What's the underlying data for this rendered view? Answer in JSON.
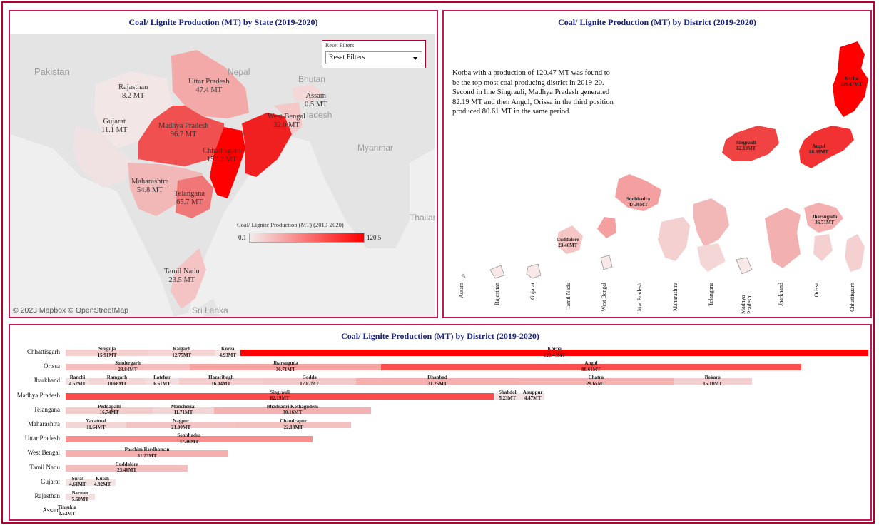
{
  "state_panel": {
    "title": "Coal/ Lignite Production (MT) by State (2019-2020)",
    "filter": {
      "title": "Reset Filters",
      "selected": "Reset Filters"
    },
    "legend": {
      "title": "Coal/ Lignite Production (MT) (2019-2020)",
      "min": "0.1",
      "max": "120.5",
      "color_low": "#f2ecec",
      "color_high": "#ff0000"
    },
    "geo_labels": [
      "Pakistan",
      "Nepal",
      "Bhutan",
      "Myanmar",
      "Thailand",
      "Sri Lanka",
      "ladesh"
    ],
    "attribution": "© 2023 Mapbox  © OpenStreetMap",
    "states": [
      {
        "name": "Rajasthan",
        "value": "8.2 MT"
      },
      {
        "name": "Uttar Pradesh",
        "value": "47.4 MT"
      },
      {
        "name": "Assam",
        "value": "0.5 MT"
      },
      {
        "name": "Gujarat",
        "value": "11.1 MT"
      },
      {
        "name": "Madhya Pradesh",
        "value": "96.7 MT"
      },
      {
        "name": "West Bengal",
        "value": "32.0 MT"
      },
      {
        "name": "Chhattisgarh",
        "value": "157.2 MT"
      },
      {
        "name": "Maharashtra",
        "value": "54.8 MT"
      },
      {
        "name": "Telangana",
        "value": "65.7 MT"
      },
      {
        "name": "Tamil Nadu",
        "value": "23.5 MT"
      }
    ]
  },
  "district_map_panel": {
    "title": "Coal/ Lignite Production (MT) by District (2019-2020)",
    "story": "Korba with a production of 120.47 MT was found to be the top most coal producing district in 2019-20.  Second in line Singrauli, Madhya Pradesh generated 82.19 MT and then Angul, Orissa in the third position produced 80.61 MT in the same period.",
    "districts": [
      {
        "name": "Korba",
        "value": "120.47MT"
      },
      {
        "name": "Singrauli",
        "value": "82.19MT"
      },
      {
        "name": "Angul",
        "value": "80.61MT"
      },
      {
        "name": "Sonbhadra",
        "value": "47.36MT"
      },
      {
        "name": "Jharsuguda",
        "value": "36.71MT"
      },
      {
        "name": "Cuddalore",
        "value": "23.46MT"
      }
    ],
    "x_labels": [
      "Assam",
      "Rajasthan",
      "Gujarat",
      "Tamil Nadu",
      "West Bengal",
      "Uttar Pradesh",
      "Maharashtra",
      "Telangana",
      "Madhya Pradesh",
      "Jharkhand",
      "Orissa",
      "Chhattisgarh"
    ]
  },
  "bar_panel": {
    "title": "Coal/ Lignite Production (MT) by District (2019-2020)",
    "rows": [
      {
        "state": "Chhattisgarh",
        "segments": [
          [
            "Surguja",
            "15.91MT",
            15.91
          ],
          [
            "Raigarh",
            "12.75MT",
            12.75
          ],
          [
            "Korea",
            "4.93MT",
            4.93
          ],
          [
            "Korba",
            "120.47MT",
            120.47
          ]
        ]
      },
      {
        "state": "Orissa",
        "segments": [
          [
            "Sundergarh",
            "23.84MT",
            23.84
          ],
          [
            "Jharsuguda",
            "36.71MT",
            36.71
          ],
          [
            "Angul",
            "80.61MT",
            80.61
          ]
        ]
      },
      {
        "state": "Jharkhand",
        "segments": [
          [
            "Ranchi",
            "4.52MT",
            4.52
          ],
          [
            "Ramgarh",
            "10.68MT",
            10.68
          ],
          [
            "Latehar",
            "6.61MT",
            6.61
          ],
          [
            "Hazaribagh",
            "16.04MT",
            16.04
          ],
          [
            "Godda",
            "17.87MT",
            17.87
          ],
          [
            "Dhanbad",
            "31.25MT",
            31.25
          ],
          [
            "Chatra",
            "29.65MT",
            29.65
          ],
          [
            "Bokaro",
            "15.10MT",
            15.1
          ]
        ]
      },
      {
        "state": "Madhya Pradesh",
        "segments": [
          [
            "Singrauli",
            "82.19MT",
            82.19
          ],
          [
            "Shahdol",
            "5.23MT",
            5.23
          ],
          [
            "Anuppur",
            "4.47MT",
            4.47
          ]
        ]
      },
      {
        "state": "Telangana",
        "segments": [
          [
            "Peddapalli",
            "16.74MT",
            16.74
          ],
          [
            "Mancherial",
            "11.71MT",
            11.71
          ],
          [
            "Bhadradri Kothagudem",
            "30.16MT",
            30.16
          ]
        ]
      },
      {
        "state": "Maharashtra",
        "segments": [
          [
            "Yavatmal",
            "11.64MT",
            11.64
          ],
          [
            "Nagpur",
            "21.00MT",
            21.0
          ],
          [
            "Chandrapur",
            "22.13MT",
            22.13
          ]
        ]
      },
      {
        "state": "Uttar Pradesh",
        "segments": [
          [
            "Sonbhadra",
            "47.36MT",
            47.36
          ]
        ]
      },
      {
        "state": "West Bengal",
        "segments": [
          [
            "Paschim Bardhaman",
            "31.23MT",
            31.23
          ]
        ]
      },
      {
        "state": "Tamil Nadu",
        "segments": [
          [
            "Cuddalore",
            "23.46MT",
            23.46
          ]
        ]
      },
      {
        "state": "Gujarat",
        "segments": [
          [
            "Surat",
            "4.61MT",
            4.61
          ],
          [
            "Kutch",
            "4.92MT",
            4.92
          ]
        ]
      },
      {
        "state": "Rajasthan",
        "segments": [
          [
            "Barmer",
            "5.60MT",
            5.6
          ]
        ]
      },
      {
        "state": "Assam",
        "segments": [
          [
            "Tinsukia",
            "0.52MT",
            0.52
          ]
        ]
      }
    ]
  },
  "chart_data": {
    "type": "bar",
    "title": "Coal/ Lignite Production (MT) by District (2019-2020)",
    "stacked": true,
    "orientation": "horizontal",
    "categories": [
      "Chhattisgarh",
      "Orissa",
      "Jharkhand",
      "Madhya Pradesh",
      "Telangana",
      "Maharashtra",
      "Uttar Pradesh",
      "West Bengal",
      "Tamil Nadu",
      "Gujarat",
      "Rajasthan",
      "Assam"
    ],
    "color_scale": {
      "min": 0.1,
      "max": 120.5,
      "low": "#f2ecec",
      "high": "#ff0000"
    }
  }
}
